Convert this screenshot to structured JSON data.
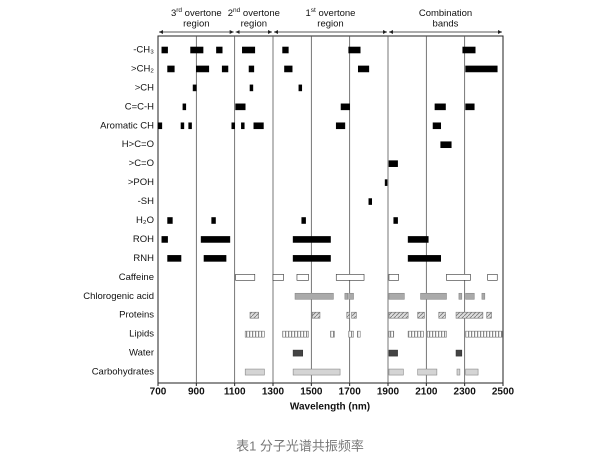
{
  "chart_data": {
    "type": "range",
    "regions": [
      {
        "num": "3",
        "sup": "rd",
        "text": " overtone",
        "line2": "region",
        "span": [
          700,
          1100
        ]
      },
      {
        "num": "2",
        "sup": "nd",
        "text": " overtone",
        "line2": "region",
        "span": [
          1100,
          1300
        ]
      },
      {
        "num": "1",
        "sup": "st",
        "text": " overtone",
        "line2": "region",
        "span": [
          1300,
          1900
        ]
      },
      {
        "text": "Combination",
        "line2": "bands",
        "span": [
          1900,
          2500
        ]
      }
    ],
    "rows": [
      {
        "label": "-CH₃",
        "style": "black",
        "ranges": [
          [
            720,
            750
          ],
          [
            870,
            935
          ],
          [
            1005,
            1035
          ],
          [
            1140,
            1205
          ],
          [
            1350,
            1380
          ],
          [
            1695,
            1755
          ],
          [
            2290,
            2355
          ]
        ]
      },
      {
        "label": ">CH₂",
        "style": "black",
        "ranges": [
          [
            750,
            785
          ],
          [
            900,
            965
          ],
          [
            1035,
            1065
          ],
          [
            1175,
            1200
          ],
          [
            1360,
            1400
          ],
          [
            1745,
            1800
          ],
          [
            2305,
            2470
          ]
        ]
      },
      {
        "label": ">CH",
        "style": "black",
        "ranges": [
          [
            883,
            900
          ],
          [
            1180,
            1195
          ],
          [
            1435,
            1450
          ]
        ]
      },
      {
        "label": "C=C-H",
        "style": "black",
        "ranges": [
          [
            830,
            845
          ],
          [
            1105,
            1155
          ],
          [
            1655,
            1700
          ],
          [
            2145,
            2200
          ],
          [
            2305,
            2350
          ]
        ]
      },
      {
        "label": "Aromatic CH",
        "style": "black",
        "ranges": [
          [
            700,
            720
          ],
          [
            820,
            835
          ],
          [
            860,
            875
          ],
          [
            1085,
            1100
          ],
          [
            1135,
            1150
          ],
          [
            1200,
            1250
          ],
          [
            1630,
            1675
          ],
          [
            2135,
            2175
          ]
        ]
      },
      {
        "label": "H>C=O",
        "style": "black",
        "ranges": [
          [
            2175,
            2230
          ]
        ]
      },
      {
        "label": ">C=O",
        "style": "black",
        "ranges": [
          [
            1905,
            1950
          ]
        ]
      },
      {
        "label": ">POH",
        "style": "black",
        "ranges": [
          [
            1885,
            1895
          ]
        ]
      },
      {
        "label": "-SH",
        "style": "black",
        "ranges": [
          [
            1800,
            1815
          ]
        ]
      },
      {
        "label": "H₂O",
        "style": "black",
        "ranges": [
          [
            750,
            775
          ],
          [
            980,
            1000
          ],
          [
            1450,
            1470
          ],
          [
            1930,
            1950
          ]
        ]
      },
      {
        "label": "ROH",
        "style": "black",
        "ranges": [
          [
            720,
            750
          ],
          [
            925,
            1075
          ],
          [
            1405,
            1600
          ],
          [
            2005,
            2110
          ]
        ]
      },
      {
        "label": "RNH",
        "style": "black",
        "ranges": [
          [
            750,
            820
          ],
          [
            940,
            1055
          ],
          [
            1405,
            1600
          ],
          [
            2005,
            2175
          ]
        ]
      },
      {
        "label": "Caffeine",
        "style": "white",
        "ranges": [
          [
            1105,
            1205
          ],
          [
            1300,
            1355
          ],
          [
            1425,
            1485
          ],
          [
            1630,
            1775
          ],
          [
            1905,
            1955
          ],
          [
            2205,
            2330
          ],
          [
            2420,
            2470
          ]
        ]
      },
      {
        "label": "Chlorogenic acid",
        "style": "gray",
        "ranges": [
          [
            1415,
            1615
          ],
          [
            1675,
            1690
          ],
          [
            1695,
            1720
          ],
          [
            1905,
            1985
          ],
          [
            2070,
            2205
          ],
          [
            2270,
            2285
          ],
          [
            2305,
            2350
          ],
          [
            2390,
            2405
          ]
        ]
      },
      {
        "label": "Proteins",
        "style": "hatched",
        "ranges": [
          [
            1180,
            1225
          ],
          [
            1505,
            1545
          ],
          [
            1685,
            1700
          ],
          [
            1710,
            1735
          ],
          [
            1905,
            2005
          ],
          [
            2055,
            2090
          ],
          [
            2165,
            2200
          ],
          [
            2255,
            2395
          ],
          [
            2415,
            2440
          ]
        ]
      },
      {
        "label": "Lipids",
        "style": "dotted",
        "ranges": [
          [
            1155,
            1255
          ],
          [
            1350,
            1485
          ],
          [
            1600,
            1620
          ],
          [
            1695,
            1720
          ],
          [
            1740,
            1755
          ],
          [
            1905,
            1930
          ],
          [
            2005,
            2085
          ],
          [
            2105,
            2205
          ],
          [
            2305,
            2495
          ]
        ]
      },
      {
        "label": "Water",
        "style": "dark",
        "ranges": [
          [
            1405,
            1455
          ],
          [
            1905,
            1950
          ],
          [
            2255,
            2285
          ]
        ]
      },
      {
        "label": "Carbohydrates",
        "style": "light",
        "ranges": [
          [
            1155,
            1255
          ],
          [
            1405,
            1650
          ],
          [
            1905,
            1980
          ],
          [
            2055,
            2155
          ],
          [
            2260,
            2275
          ],
          [
            2305,
            2370
          ]
        ]
      }
    ],
    "xlabel": "Wavelength (nm)",
    "xlim": [
      700,
      2500
    ],
    "xticks": [
      700,
      900,
      1100,
      1300,
      1500,
      1700,
      1900,
      2100,
      2300,
      2500
    ],
    "grid": true
  },
  "caption": "表1 分子光谱共振频率"
}
